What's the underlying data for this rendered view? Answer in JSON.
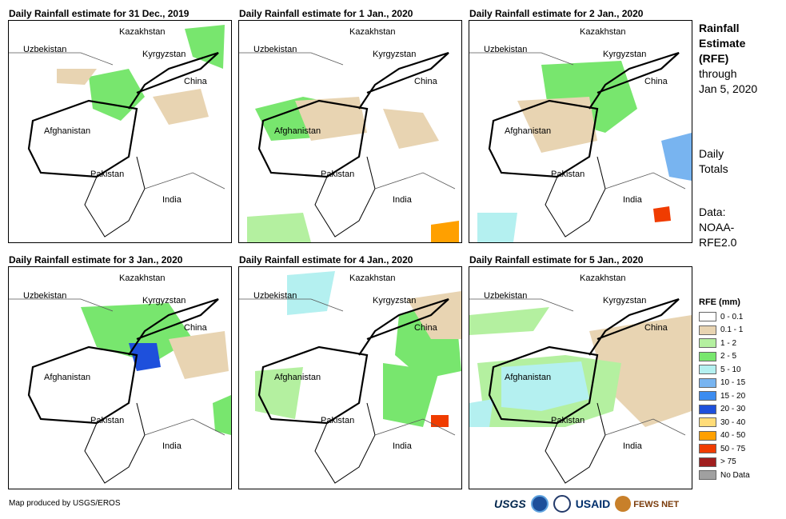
{
  "panels": [
    {
      "title": "Daily Rainfall estimate for 31 Dec., 2019"
    },
    {
      "title": "Daily Rainfall estimate for 1 Jan., 2020"
    },
    {
      "title": "Daily Rainfall estimate for 2 Jan., 2020"
    },
    {
      "title": "Daily Rainfall estimate for 3 Jan., 2020"
    },
    {
      "title": "Daily Rainfall estimate for 4 Jan., 2020"
    },
    {
      "title": "Daily Rainfall estimate for 5 Jan., 2020"
    }
  ],
  "map_labels": {
    "kazakhstan": "Kazakhstan",
    "uzbekistan": "Uzbekistan",
    "kyrgyzstan": "Kyrgyzstan",
    "china": "China",
    "afghanistan": "Afghanistan",
    "pakistan": "Pakistan",
    "india": "India"
  },
  "sidebar": {
    "heading_line1": "Rainfall",
    "heading_line2": "Estimate",
    "heading_line3": "(RFE)",
    "through": "through",
    "date": "Jan 5, 2020",
    "daily_line1": "Daily",
    "daily_line2": "Totals",
    "data_line1": "Data:",
    "data_line2": "NOAA-",
    "data_line3": "RFE2.0"
  },
  "legend": {
    "title": "RFE (mm)",
    "items": [
      {
        "label": "0 - 0.1",
        "color": "#ffffff"
      },
      {
        "label": "0.1 - 1",
        "color": "#e8d4b2"
      },
      {
        "label": "1 - 2",
        "color": "#b4f0a0"
      },
      {
        "label": "2 - 5",
        "color": "#78e66e"
      },
      {
        "label": "5 - 10",
        "color": "#b4f0f0"
      },
      {
        "label": "10 - 15",
        "color": "#78b4f0"
      },
      {
        "label": "15 - 20",
        "color": "#3c8cf0"
      },
      {
        "label": "20 - 30",
        "color": "#1e50dc"
      },
      {
        "label": "30 - 40",
        "color": "#ffdc78"
      },
      {
        "label": "40 - 50",
        "color": "#ffa000"
      },
      {
        "label": "50 - 75",
        "color": "#f03c00"
      },
      {
        "label": "> 75",
        "color": "#a01e1e"
      },
      {
        "label": "No Data",
        "color": "#a0a0a0"
      }
    ]
  },
  "footer": {
    "credit": "Map produced by USGS/EROS",
    "logo_usgs": "USGS",
    "logo_usaid": "USAID",
    "logo_fews": "FEWS NET"
  }
}
